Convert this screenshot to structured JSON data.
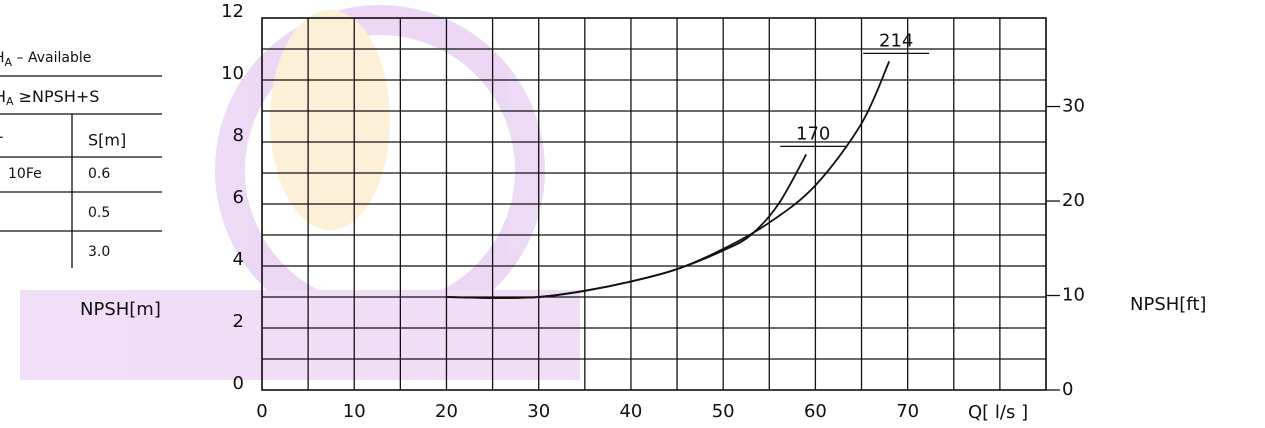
{
  "table": {
    "title": {
      "main": "H",
      "sub": "A",
      "rest": " – Available"
    },
    "condition": {
      "main": "H",
      "sub": "A",
      "rest": " ≥NPSH+S"
    },
    "header": [
      "r",
      "S[m]"
    ],
    "rows": [
      {
        "material": "10Fe",
        "s": "0.6"
      },
      {
        "s": "0.5"
      },
      {
        "s": "3.0"
      }
    ]
  },
  "chart_data": {
    "type": "line",
    "y_label": "NPSH[m]",
    "y2_label": "NPSH[ft]",
    "x_label": "Q[ l/s ]",
    "xlim": [
      0,
      85
    ],
    "xticks": [
      0,
      10,
      20,
      30,
      40,
      50,
      60,
      70
    ],
    "x_minor_ticks": [
      5,
      15,
      25,
      35,
      45,
      55,
      65,
      75,
      80,
      85
    ],
    "ylim": [
      0,
      12
    ],
    "yticks": [
      0,
      2,
      4,
      6,
      8,
      10,
      12
    ],
    "y_minor_ticks": [
      1,
      3,
      5,
      7,
      9,
      11
    ],
    "y2lim": [
      0,
      39.37
    ],
    "y2ticks": [
      0,
      10,
      20,
      30
    ],
    "grid": true,
    "series": [
      {
        "name": "214",
        "color": "#111111",
        "x": [
          20,
          25,
          30,
          35,
          40,
          45,
          50,
          55,
          60,
          65,
          68
        ],
        "values": [
          3.0,
          2.97,
          3.0,
          3.2,
          3.5,
          3.9,
          4.55,
          5.4,
          6.6,
          8.6,
          10.6
        ]
      },
      {
        "name": "170",
        "color": "#111111",
        "x": [
          20,
          25,
          30,
          35,
          40,
          45,
          50,
          53,
          56,
          59
        ],
        "values": [
          3.0,
          2.97,
          3.0,
          3.2,
          3.5,
          3.9,
          4.5,
          5.0,
          6.0,
          7.6
        ]
      }
    ]
  }
}
